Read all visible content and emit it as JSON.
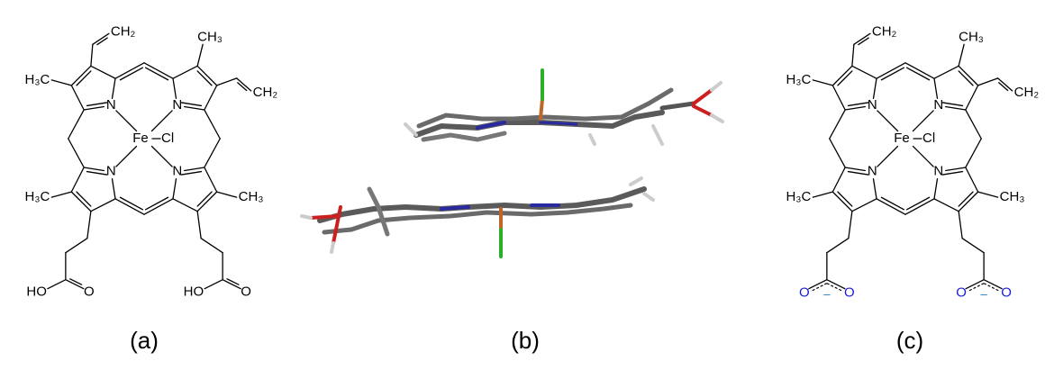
{
  "panels": [
    {
      "label": "(a)",
      "atoms": [
        "CH₂",
        "CH₃",
        "CH₂",
        "H₃C",
        "N",
        "N",
        "N",
        "N",
        "Fe",
        "Cl",
        "H₃C",
        "CH₃",
        "HO",
        "O",
        "HO",
        "O"
      ]
    },
    {
      "label": "(b)"
    },
    {
      "label": "(c)",
      "atoms": [
        "CH₂",
        "CH₃",
        "CH₂",
        "H₃C",
        "N",
        "N",
        "N",
        "N",
        "Fe",
        "Cl",
        "H₃C",
        "CH₃",
        "O",
        "O",
        "−",
        "O",
        "O",
        "−"
      ]
    }
  ]
}
